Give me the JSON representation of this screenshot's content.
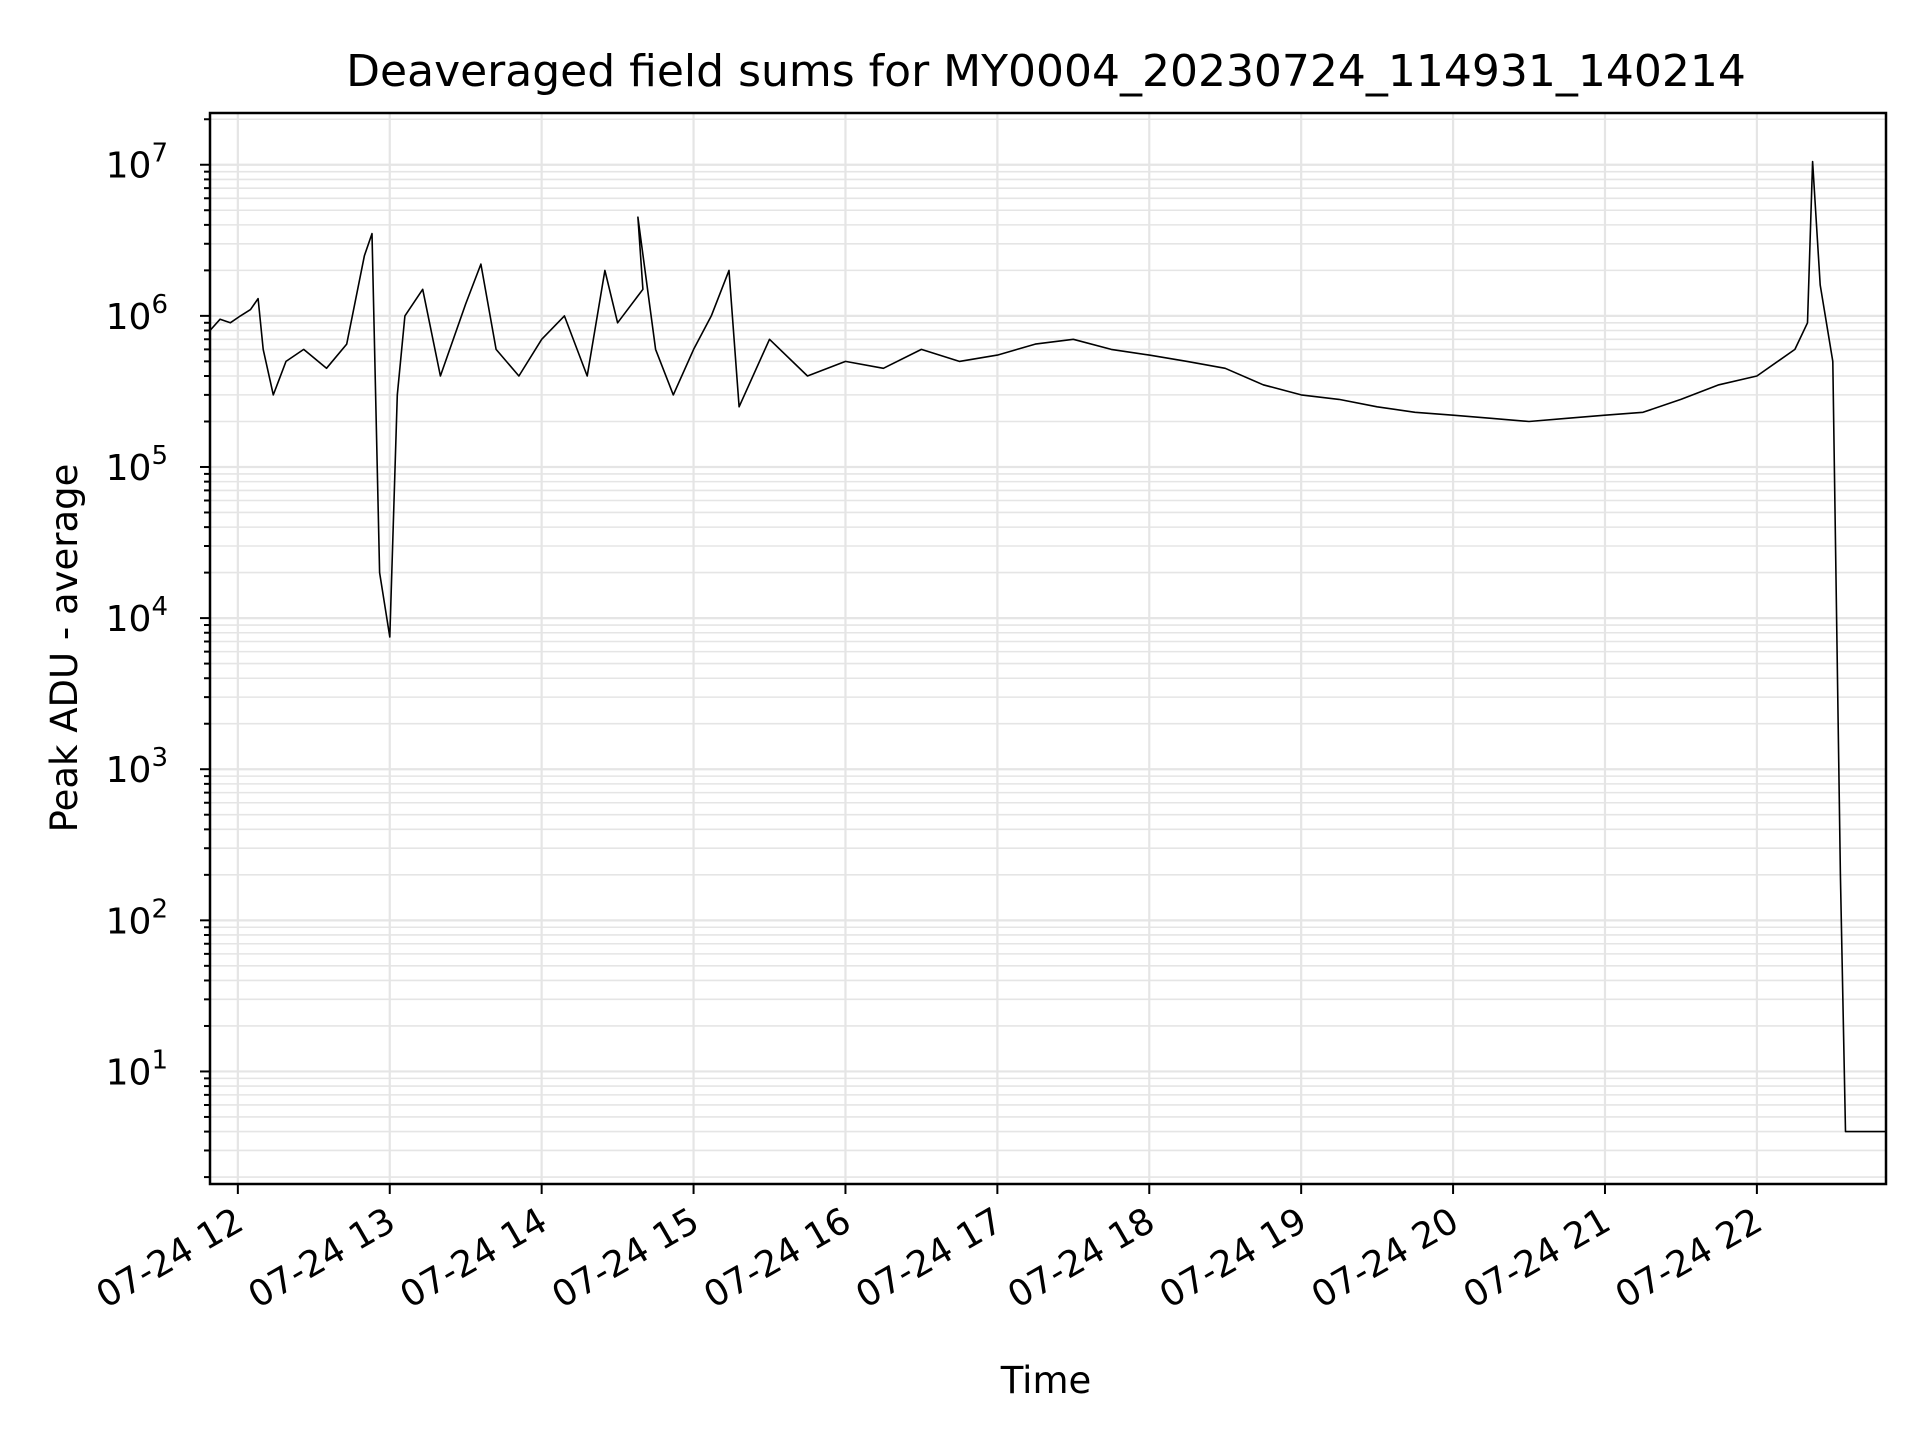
{
  "chart_data": {
    "type": "line",
    "title": "Deaveraged field sums for MY0004_20230724_114931_140214",
    "xlabel": "Time",
    "ylabel": "Peak ADU - average",
    "yscale": "log",
    "ylim": [
      1.8,
      22000000
    ],
    "xlim": [
      "2023-07-24 11:49",
      "2023-07-24 22:51"
    ],
    "x_ticks": [
      "2023-07-24 12:00",
      "2023-07-24 13:00",
      "2023-07-24 14:00",
      "2023-07-24 15:00",
      "2023-07-24 16:00",
      "2023-07-24 17:00",
      "2023-07-24 18:00",
      "2023-07-24 19:00",
      "2023-07-24 20:00",
      "2023-07-24 21:00",
      "2023-07-24 22:00"
    ],
    "x_tick_labels": [
      "07-24 12",
      "07-24 13",
      "07-24 14",
      "07-24 15",
      "07-24 16",
      "07-24 17",
      "07-24 18",
      "07-24 19",
      "07-24 20",
      "07-24 21",
      "07-24 22"
    ],
    "y_ticks": [
      {
        "value": 10,
        "base": "10",
        "exp": "1"
      },
      {
        "value": 100,
        "base": "10",
        "exp": "2"
      },
      {
        "value": 1000,
        "base": "10",
        "exp": "3"
      },
      {
        "value": 10000,
        "base": "10",
        "exp": "4"
      },
      {
        "value": 100000,
        "base": "10",
        "exp": "5"
      },
      {
        "value": 1000000,
        "base": "10",
        "exp": "6"
      },
      {
        "value": 10000000,
        "base": "10",
        "exp": "7"
      }
    ],
    "grid": true,
    "line_color": "#000000",
    "grid_color": "#e5e5e5",
    "series": [
      {
        "values": [
          [
            "2023-07-24 11:49",
            800000
          ],
          [
            "2023-07-24 11:53",
            950000
          ],
          [
            "2023-07-24 11:57",
            900000
          ],
          [
            "2023-07-24 12:01",
            1000000
          ],
          [
            "2023-07-24 12:05",
            1100000
          ],
          [
            "2023-07-24 12:08",
            1300000
          ],
          [
            "2023-07-24 12:10",
            600000
          ],
          [
            "2023-07-24 12:14",
            300000
          ],
          [
            "2023-07-24 12:19",
            500000
          ],
          [
            "2023-07-24 12:26",
            600000
          ],
          [
            "2023-07-24 12:35",
            450000
          ],
          [
            "2023-07-24 12:43",
            650000
          ],
          [
            "2023-07-24 12:50",
            2500000
          ],
          [
            "2023-07-24 12:53",
            3500000
          ],
          [
            "2023-07-24 12:56",
            20000
          ],
          [
            "2023-07-24 13:00",
            7500
          ],
          [
            "2023-07-24 13:03",
            300000
          ],
          [
            "2023-07-24 13:06",
            1000000
          ],
          [
            "2023-07-24 13:13",
            1500000
          ],
          [
            "2023-07-24 13:20",
            400000
          ],
          [
            "2023-07-24 13:30",
            1200000
          ],
          [
            "2023-07-24 13:36",
            2200000
          ],
          [
            "2023-07-24 13:42",
            600000
          ],
          [
            "2023-07-24 13:51",
            400000
          ],
          [
            "2023-07-24 14:00",
            700000
          ],
          [
            "2023-07-24 14:09",
            1000000
          ],
          [
            "2023-07-24 14:18",
            400000
          ],
          [
            "2023-07-24 14:25",
            2000000
          ],
          [
            "2023-07-24 14:30",
            900000
          ],
          [
            "2023-07-24 14:40",
            1500000
          ],
          [
            "2023-07-24 14:38",
            4500000
          ],
          [
            "2023-07-24 14:45",
            600000
          ],
          [
            "2023-07-24 14:52",
            300000
          ],
          [
            "2023-07-24 15:00",
            600000
          ],
          [
            "2023-07-24 15:07",
            1000000
          ],
          [
            "2023-07-24 15:14",
            2000000
          ],
          [
            "2023-07-24 15:18",
            250000
          ],
          [
            "2023-07-24 15:30",
            700000
          ],
          [
            "2023-07-24 15:45",
            400000
          ],
          [
            "2023-07-24 16:00",
            500000
          ],
          [
            "2023-07-24 16:15",
            450000
          ],
          [
            "2023-07-24 16:30",
            600000
          ],
          [
            "2023-07-24 16:45",
            500000
          ],
          [
            "2023-07-24 17:00",
            550000
          ],
          [
            "2023-07-24 17:15",
            650000
          ],
          [
            "2023-07-24 17:30",
            700000
          ],
          [
            "2023-07-24 17:45",
            600000
          ],
          [
            "2023-07-24 18:00",
            550000
          ],
          [
            "2023-07-24 18:15",
            500000
          ],
          [
            "2023-07-24 18:30",
            450000
          ],
          [
            "2023-07-24 18:45",
            350000
          ],
          [
            "2023-07-24 19:00",
            300000
          ],
          [
            "2023-07-24 19:15",
            280000
          ],
          [
            "2023-07-24 19:30",
            250000
          ],
          [
            "2023-07-24 19:45",
            230000
          ],
          [
            "2023-07-24 20:00",
            220000
          ],
          [
            "2023-07-24 20:15",
            210000
          ],
          [
            "2023-07-24 20:30",
            200000
          ],
          [
            "2023-07-24 20:45",
            210000
          ],
          [
            "2023-07-24 21:00",
            220000
          ],
          [
            "2023-07-24 21:15",
            230000
          ],
          [
            "2023-07-24 21:30",
            280000
          ],
          [
            "2023-07-24 21:45",
            350000
          ],
          [
            "2023-07-24 22:00",
            400000
          ],
          [
            "2023-07-24 22:15",
            600000
          ],
          [
            "2023-07-24 22:20",
            900000
          ],
          [
            "2023-07-24 22:22",
            10500000
          ],
          [
            "2023-07-24 22:25",
            1600000
          ],
          [
            "2023-07-24 22:30",
            500000
          ],
          [
            "2023-07-24 22:33",
            200
          ],
          [
            "2023-07-24 22:35",
            4
          ],
          [
            "2023-07-24 22:51",
            4
          ]
        ]
      }
    ]
  }
}
